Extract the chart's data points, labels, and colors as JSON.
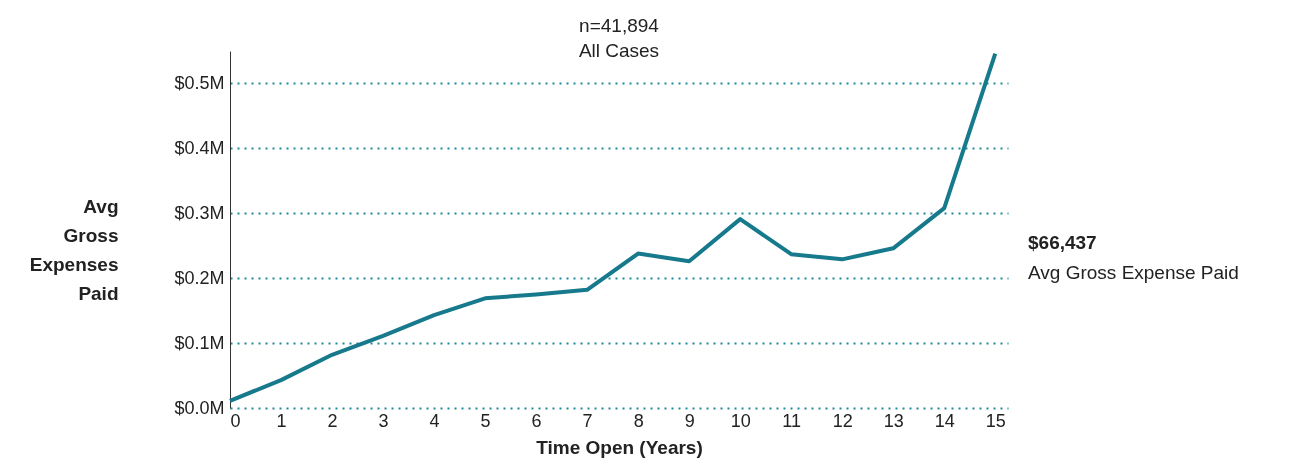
{
  "chart_data": {
    "type": "line",
    "title": "n=41,894",
    "subtitle": "All Cases",
    "xlabel": "Time Open (Years)",
    "ylabel": "Avg Gross Expenses Paid",
    "x": [
      0,
      1,
      2,
      3,
      4,
      5,
      6,
      7,
      8,
      9,
      10,
      11,
      12,
      13,
      14,
      15
    ],
    "series": [
      {
        "color": "#16798c",
        "values": [
          0.011,
          0.043,
          0.082,
          0.111,
          0.143,
          0.169,
          0.175,
          0.182,
          0.238,
          0.226,
          0.291,
          0.237,
          0.229,
          0.246,
          0.308,
          0.546
        ]
      }
    ],
    "xlim": [
      0,
      15.25
    ],
    "xticks": [
      0,
      1,
      2,
      3,
      4,
      5,
      6,
      7,
      8,
      9,
      10,
      11,
      12,
      13,
      14,
      15
    ],
    "ylim": [
      0,
      0.55
    ],
    "yticks": [
      {
        "value": 0,
        "label": "$0.0M"
      },
      {
        "value": 0.1,
        "label": "$0.1M"
      },
      {
        "value": 0.2,
        "label": "$0.2M"
      },
      {
        "value": 0.3,
        "label": "$0.3M"
      },
      {
        "value": 0.4,
        "label": "$0.4M"
      },
      {
        "value": 0.5,
        "label": "$0.5M"
      }
    ],
    "grid": "y",
    "marker": "none",
    "line_style": "solid",
    "annotations": [
      "$66,437",
      "Avg Gross Expense Paid"
    ]
  }
}
